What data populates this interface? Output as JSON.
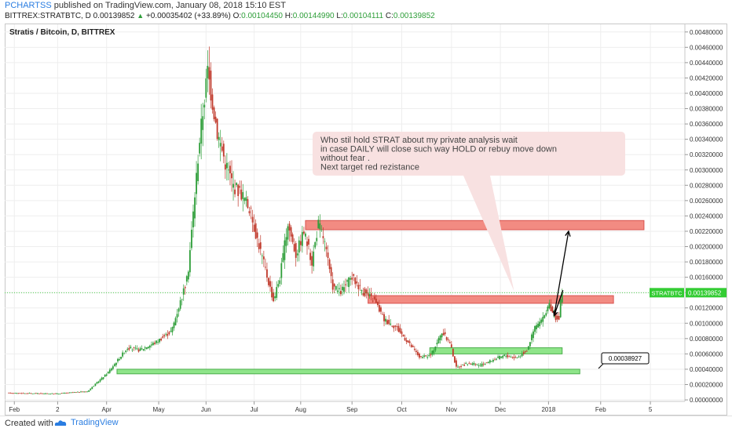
{
  "header": {
    "author": "PCHARTSS",
    "published_text": "published on TradingView.com, January 08, 2018 15:10 EST",
    "symbol_line": "BITTREX:STRATBTC, D",
    "last": "0.00139852",
    "change": "+0.00035402 (+33.89%)",
    "open_label": "O:",
    "open": "0.00104450",
    "high_label": "H:",
    "high": "0.00144990",
    "low_label": "L:",
    "low": "0.00104111",
    "close_label": "C:",
    "close": "0.00139852"
  },
  "footer": {
    "created_with": "Created with",
    "brand": "TradingView"
  },
  "colors": {
    "up": "#2e9e39",
    "down": "#c0392b",
    "red_zone": "#f28b82",
    "green_zone": "#8fe58a",
    "price_tag": "#33cc33",
    "callout_bg": "#f8e1e1",
    "grid": "#eeeeee"
  },
  "chart_data": {
    "type": "candlestick",
    "title": "Stratis / Bitcoin, D, BITTREX",
    "price_axis": {
      "ticks": [
        "0.00480000",
        "0.00460000",
        "0.00440000",
        "0.00420000",
        "0.00400000",
        "0.00380000",
        "0.00360000",
        "0.00340000",
        "0.00320000",
        "0.00300000",
        "0.00280000",
        "0.00260000",
        "0.00240000",
        "0.00220000",
        "0.00200000",
        "0.00180000",
        "0.00160000",
        "0.00140000",
        "0.00120000",
        "0.00100000",
        "0.00080000",
        "0.00060000",
        "0.00040000",
        "0.00020000",
        "0.00000000"
      ],
      "ylim": [
        -2e-05,
        0.0049
      ]
    },
    "time_axis": {
      "ticks": [
        "Feb",
        "2",
        "Apr",
        "May",
        "Jun",
        "Jul",
        "Aug",
        "Sep",
        "Oct",
        "Nov",
        "Dec",
        "2018",
        "Feb",
        "5"
      ],
      "tick_days": [
        7,
        61,
        122,
        187,
        246,
        306,
        364,
        428,
        490,
        552,
        613,
        673,
        738,
        800
      ]
    },
    "price_path": [
      [
        0,
        9e-05
      ],
      [
        60,
        8e-05
      ],
      [
        100,
        0.00011
      ],
      [
        125,
        0.00035
      ],
      [
        150,
        0.00068
      ],
      [
        165,
        0.00065
      ],
      [
        185,
        0.00075
      ],
      [
        205,
        0.0009
      ],
      [
        225,
        0.0016
      ],
      [
        240,
        0.0034
      ],
      [
        250,
        0.0043
      ],
      [
        262,
        0.0035
      ],
      [
        272,
        0.0031
      ],
      [
        282,
        0.0028
      ],
      [
        292,
        0.0027
      ],
      [
        302,
        0.0025
      ],
      [
        312,
        0.0021
      ],
      [
        322,
        0.0017
      ],
      [
        332,
        0.0013
      ],
      [
        340,
        0.0016
      ],
      [
        350,
        0.0023
      ],
      [
        360,
        0.0019
      ],
      [
        370,
        0.0022
      ],
      [
        380,
        0.0018
      ],
      [
        388,
        0.0023
      ],
      [
        395,
        0.0021
      ],
      [
        405,
        0.0015
      ],
      [
        415,
        0.0014
      ],
      [
        430,
        0.0016
      ],
      [
        445,
        0.0014
      ],
      [
        458,
        0.0013
      ],
      [
        470,
        0.00105
      ],
      [
        485,
        0.00095
      ],
      [
        500,
        0.00075
      ],
      [
        515,
        0.00055
      ],
      [
        528,
        0.00058
      ],
      [
        542,
        0.00088
      ],
      [
        552,
        0.00075
      ],
      [
        560,
        0.00042
      ],
      [
        575,
        0.00048
      ],
      [
        590,
        0.00045
      ],
      [
        605,
        0.00052
      ],
      [
        620,
        0.00058
      ],
      [
        635,
        0.00055
      ],
      [
        648,
        0.00065
      ],
      [
        658,
        0.00095
      ],
      [
        668,
        0.00105
      ],
      [
        675,
        0.00125
      ],
      [
        681,
        0.0011
      ],
      [
        688,
        0.00105
      ],
      [
        691,
        0.0014
      ]
    ],
    "last_day": 691,
    "current_price": {
      "value": 0.00139852,
      "label": "0.00139852",
      "symbol": "STRATBTC"
    },
    "zones": [
      {
        "color": "red",
        "y_low": 0.00222,
        "y_high": 0.00234,
        "x_start": 370,
        "x_end": 792
      },
      {
        "color": "red",
        "y_low": 0.00126,
        "y_high": 0.00136,
        "x_start": 448,
        "x_end": 754
      },
      {
        "color": "green",
        "y_low": 0.0006,
        "y_high": 0.00068,
        "x_start": 525,
        "x_end": 690
      },
      {
        "color": "green",
        "y_low": 0.00034,
        "y_high": 0.0004,
        "x_start": 135,
        "x_end": 712
      }
    ],
    "price_label": {
      "text": "0.00038927",
      "value": 0.00038927
    },
    "annotation": {
      "lines": [
        "Who stil hold STRAT about my private  analysis wait",
        "in case DAILY will close such way HOLD or rebuy move down",
        "without fear .",
        "Next target red rezistance"
      ],
      "pointer_day": 630,
      "pointer_price": 0.00142
    },
    "projection": [
      [
        691,
        0.00143
      ],
      [
        680,
        0.0011
      ],
      [
        698,
        0.0022
      ]
    ]
  }
}
